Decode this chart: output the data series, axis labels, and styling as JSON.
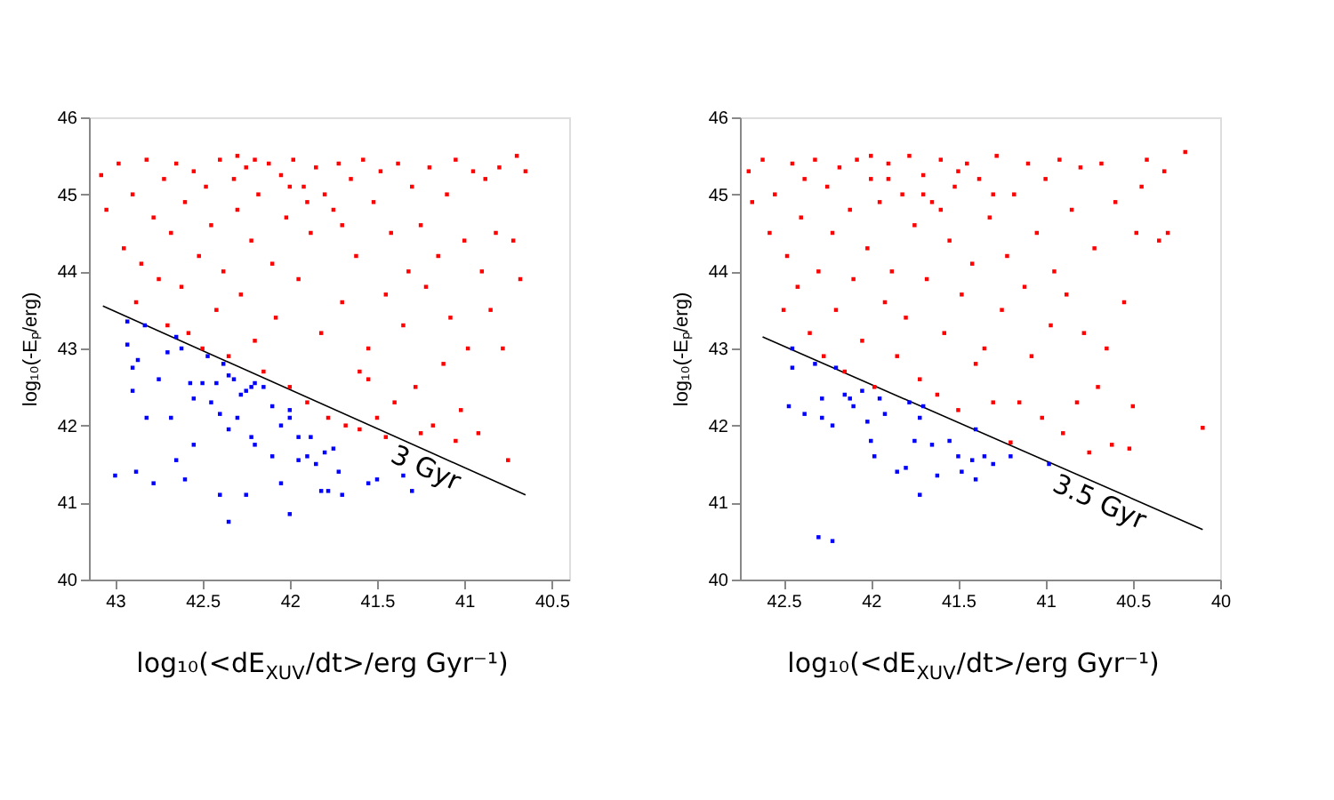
{
  "chart_data": [
    {
      "type": "scatter",
      "xlabel": "log₁₀(<dE$_{XUV}$/dt>/erg Gyr⁻¹)",
      "ylabel": "log₁₀(-Eₚ/erg)",
      "xlim": [
        43.15,
        40.4
      ],
      "xticks": [
        43,
        42.5,
        42,
        41.5,
        41,
        40.5
      ],
      "ylim": [
        40,
        46
      ],
      "yticks": [
        40,
        41,
        42,
        43,
        44,
        45,
        46
      ],
      "grid": false,
      "marker": "square",
      "annotations": [
        "3 Gyr"
      ],
      "series": [
        {
          "color": "#ff0000",
          "x": [
            43.08,
            43.05,
            42.98,
            42.95,
            42.9,
            42.88,
            42.85,
            42.82,
            42.78,
            42.75,
            42.72,
            42.7,
            42.68,
            42.65,
            42.62,
            42.6,
            42.58,
            42.55,
            42.52,
            42.5,
            42.48,
            42.45,
            42.42,
            42.4,
            42.38,
            42.35,
            42.32,
            42.3,
            42.28,
            42.25,
            42.22,
            42.2,
            42.18,
            42.15,
            42.12,
            42.1,
            42.08,
            42.05,
            42.02,
            42.0,
            41.98,
            41.95,
            41.92,
            41.9,
            41.88,
            41.85,
            41.82,
            41.8,
            41.78,
            41.75,
            41.72,
            41.7,
            41.68,
            41.65,
            41.62,
            41.6,
            41.58,
            41.55,
            41.52,
            41.5,
            41.48,
            41.45,
            41.42,
            41.4,
            41.38,
            41.35,
            41.32,
            41.3,
            41.28,
            41.25,
            41.22,
            41.2,
            41.18,
            41.15,
            41.12,
            41.1,
            41.08,
            41.05,
            41.02,
            41.0,
            40.98,
            40.95,
            40.92,
            40.9,
            40.88,
            40.85,
            40.82,
            40.8,
            40.78,
            40.75,
            40.72,
            40.7,
            40.65,
            40.68,
            41.6,
            41.55,
            41.45,
            41.25,
            41.05,
            42.2,
            42.0,
            41.9,
            42.3,
            41.7
          ],
          "values": [
            45.25,
            44.8,
            45.4,
            44.3,
            45.0,
            43.6,
            44.1,
            45.45,
            44.7,
            43.9,
            45.2,
            43.3,
            44.5,
            45.4,
            43.8,
            44.9,
            43.2,
            45.3,
            44.2,
            43.0,
            45.1,
            44.6,
            43.5,
            45.45,
            44.0,
            42.9,
            45.2,
            44.8,
            43.7,
            45.35,
            44.4,
            43.1,
            45.0,
            42.7,
            45.4,
            44.1,
            43.4,
            45.25,
            44.7,
            42.5,
            45.45,
            43.9,
            45.1,
            42.3,
            44.5,
            45.35,
            43.2,
            45.0,
            42.1,
            44.8,
            45.4,
            43.6,
            42.0,
            45.2,
            44.2,
            42.7,
            45.45,
            43.0,
            44.9,
            42.1,
            45.3,
            43.7,
            44.5,
            42.3,
            45.4,
            43.3,
            44.0,
            45.1,
            42.5,
            44.6,
            43.8,
            45.35,
            42.0,
            44.2,
            42.8,
            45.0,
            43.4,
            45.45,
            42.2,
            44.4,
            43.0,
            45.3,
            41.9,
            44.0,
            45.2,
            43.5,
            44.5,
            45.35,
            43.0,
            41.55,
            44.4,
            45.5,
            45.3,
            43.9,
            41.95,
            42.6,
            41.85,
            41.9,
            41.8,
            45.45,
            45.1,
            44.9,
            45.5,
            44.6
          ]
        },
        {
          "color": "#0000ff",
          "x": [
            42.93,
            42.93,
            42.9,
            42.87,
            42.83,
            42.9,
            42.82,
            42.75,
            42.68,
            42.7,
            42.65,
            42.62,
            42.57,
            42.55,
            42.5,
            42.47,
            42.42,
            42.38,
            42.35,
            42.32,
            42.28,
            42.25,
            42.22,
            42.2,
            42.15,
            42.1,
            42.05,
            42.0,
            41.95,
            41.9,
            41.85,
            41.8,
            41.75,
            41.72,
            41.78,
            41.7,
            41.82,
            41.5,
            41.35,
            41.3,
            41.55,
            42.35,
            42.4,
            42.22,
            42.2,
            42.25,
            42.05,
            42.1,
            42.0,
            42.35,
            42.4,
            42.65,
            42.78,
            42.88,
            43.0,
            42.6,
            42.55,
            42.0,
            41.88,
            41.95,
            42.3,
            42.45
          ],
          "values": [
            43.35,
            43.05,
            42.75,
            42.85,
            43.3,
            42.45,
            42.1,
            42.6,
            42.1,
            42.95,
            43.15,
            43.0,
            42.55,
            42.35,
            42.55,
            42.9,
            42.55,
            42.8,
            42.65,
            42.6,
            42.4,
            42.45,
            42.5,
            42.55,
            42.5,
            42.25,
            42.0,
            42.2,
            41.85,
            41.6,
            41.5,
            41.65,
            41.7,
            41.4,
            41.15,
            41.1,
            41.15,
            41.3,
            41.35,
            41.15,
            41.25,
            41.95,
            42.15,
            41.85,
            41.75,
            41.1,
            41.25,
            41.6,
            40.85,
            40.75,
            41.1,
            41.55,
            41.25,
            41.4,
            41.35,
            41.3,
            41.75,
            42.1,
            41.85,
            41.55,
            42.1,
            42.3
          ]
        },
        {
          "type": "line",
          "marker": "none",
          "color": "#000000",
          "x": [
            43.07,
            40.65
          ],
          "values": [
            43.55,
            41.1
          ]
        }
      ]
    },
    {
      "type": "scatter",
      "xlabel": "log₁₀(<dE$_{XUV}$/dt>/erg Gyr⁻¹)",
      "ylabel": "log₁₀(-Eₚ/erg)",
      "xlim": [
        42.75,
        40.0
      ],
      "xticks": [
        42.5,
        42,
        41.5,
        41,
        40.5,
        40
      ],
      "ylim": [
        40,
        46
      ],
      "yticks": [
        40,
        41,
        42,
        43,
        44,
        45,
        46
      ],
      "grid": false,
      "marker": "square",
      "annotations": [
        "3.5 Gyr"
      ],
      "series": [
        {
          "color": "#ff0000",
          "x": [
            42.7,
            42.68,
            42.62,
            42.58,
            42.55,
            42.5,
            42.48,
            42.45,
            42.42,
            42.4,
            42.38,
            42.35,
            42.32,
            42.3,
            42.27,
            42.25,
            42.22,
            42.2,
            42.18,
            42.15,
            42.12,
            42.1,
            42.08,
            42.05,
            42.02,
            42.0,
            41.98,
            41.95,
            41.92,
            41.9,
            41.88,
            41.85,
            41.82,
            41.8,
            41.78,
            41.75,
            41.72,
            41.7,
            41.68,
            41.65,
            41.62,
            41.6,
            41.58,
            41.55,
            41.52,
            41.5,
            41.48,
            41.45,
            41.42,
            41.4,
            41.38,
            41.35,
            41.32,
            41.3,
            41.28,
            41.25,
            41.22,
            41.2,
            41.18,
            41.15,
            41.12,
            41.1,
            41.08,
            41.05,
            41.02,
            41.0,
            40.97,
            40.95,
            40.92,
            40.9,
            40.88,
            40.85,
            40.82,
            40.8,
            40.78,
            40.75,
            40.72,
            40.7,
            40.68,
            40.65,
            40.62,
            40.6,
            40.55,
            40.52,
            40.5,
            40.48,
            40.45,
            40.42,
            40.35,
            40.3,
            40.32,
            40.2,
            40.1,
            41.9,
            41.7,
            41.5,
            41.6,
            42.0,
            41.3
          ],
          "values": [
            45.3,
            44.9,
            45.45,
            44.5,
            45.0,
            43.5,
            44.2,
            45.4,
            43.8,
            44.7,
            45.2,
            43.2,
            45.45,
            44.0,
            42.9,
            45.1,
            44.5,
            43.5,
            45.35,
            42.7,
            44.8,
            43.9,
            45.45,
            43.1,
            44.3,
            45.2,
            42.5,
            44.9,
            43.6,
            45.4,
            44.0,
            42.9,
            45.0,
            43.4,
            45.5,
            44.6,
            42.6,
            45.25,
            43.9,
            44.9,
            42.4,
            45.45,
            43.2,
            44.4,
            45.1,
            42.2,
            43.7,
            45.4,
            44.1,
            42.8,
            45.2,
            43.0,
            44.7,
            42.3,
            45.5,
            43.5,
            44.2,
            41.78,
            45.0,
            42.3,
            43.8,
            45.4,
            42.9,
            44.5,
            42.1,
            45.2,
            43.3,
            44.0,
            45.45,
            41.9,
            43.7,
            44.8,
            42.3,
            45.35,
            43.2,
            41.65,
            44.3,
            42.5,
            45.4,
            43.0,
            41.75,
            44.9,
            43.6,
            41.7,
            42.25,
            44.5,
            45.1,
            45.45,
            44.4,
            44.5,
            45.3,
            45.55,
            41.97,
            45.2,
            45.0,
            45.3,
            44.8,
            45.5,
            45.0
          ]
        },
        {
          "color": "#0000ff",
          "x": [
            42.45,
            42.45,
            42.47,
            42.38,
            42.32,
            42.28,
            42.28,
            42.22,
            42.2,
            42.15,
            42.12,
            42.1,
            42.05,
            42.02,
            42.0,
            41.98,
            41.95,
            41.92,
            41.85,
            41.8,
            41.78,
            41.75,
            41.72,
            41.7,
            41.72,
            41.65,
            41.62,
            41.55,
            41.5,
            41.48,
            41.42,
            41.4,
            41.35,
            41.3,
            41.2,
            40.98,
            42.3,
            42.22,
            41.4
          ],
          "values": [
            43.0,
            42.75,
            42.25,
            42.15,
            42.8,
            42.35,
            42.1,
            42.0,
            42.75,
            42.4,
            42.35,
            42.25,
            42.45,
            42.05,
            41.8,
            41.6,
            42.35,
            42.15,
            41.4,
            41.45,
            42.3,
            41.8,
            42.1,
            42.25,
            41.1,
            41.75,
            41.35,
            41.8,
            41.6,
            41.4,
            41.55,
            41.3,
            41.6,
            41.5,
            41.6,
            41.5,
            40.55,
            40.5,
            41.95
          ]
        },
        {
          "type": "line",
          "marker": "none",
          "color": "#000000",
          "x": [
            42.62,
            40.1
          ],
          "values": [
            43.15,
            40.65
          ]
        }
      ]
    }
  ]
}
